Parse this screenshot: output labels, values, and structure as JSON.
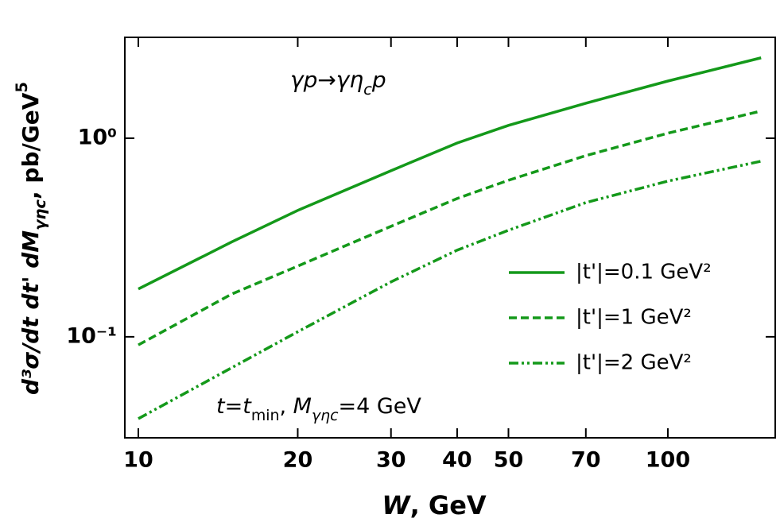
{
  "chart_data": {
    "type": "line",
    "xlog": true,
    "ylog": true,
    "xlim": [
      9.43,
      159.5
    ],
    "ylim": [
      0.031,
      3.22
    ],
    "xticks": [
      10,
      20,
      30,
      40,
      50,
      70,
      100
    ],
    "yticks": [
      {
        "value": 1,
        "label": "10⁰"
      },
      {
        "value": 0.1,
        "label": "10⁻¹"
      }
    ],
    "x": [
      10,
      15,
      20,
      30,
      40,
      50,
      70,
      100,
      150
    ],
    "series": [
      {
        "name": "|t'|=0.1 GeV²",
        "color": "#14991a",
        "dash": "solid",
        "values": [
          0.174,
          0.3,
          0.433,
          0.686,
          0.946,
          1.16,
          1.5,
          1.94,
          2.54
        ]
      },
      {
        "name": "|t'|=1 GeV²",
        "color": "#14991a",
        "dash": "dashed",
        "values": [
          0.091,
          0.164,
          0.227,
          0.36,
          0.497,
          0.614,
          0.817,
          1.06,
          1.37
        ]
      },
      {
        "name": "|t'|=2 GeV²",
        "color": "#14991a",
        "dash": "dashdot",
        "values": [
          0.0387,
          0.0698,
          0.106,
          0.189,
          0.273,
          0.344,
          0.474,
          0.608,
          0.766
        ]
      }
    ],
    "legend": "center right",
    "x_label": [
      {
        "text": "W",
        "italic": true
      },
      {
        "text": ", GeV"
      }
    ],
    "y_label": [
      {
        "text": "d³σ/dt dt' dM",
        "italic": true
      },
      {
        "text": "γη",
        "italic": true,
        "sub": true
      },
      {
        "text": "c",
        "italic": true,
        "sub": true
      },
      {
        "text": ", pb/GeV"
      },
      {
        "text": "5",
        "sup": true
      }
    ],
    "annotations": [
      [
        {
          "text": "γp→γη",
          "italic": true
        },
        {
          "text": "c",
          "italic": true,
          "sub": true
        },
        {
          "text": "p",
          "italic": true
        }
      ],
      [
        {
          "text": "t",
          "italic": true
        },
        {
          "text": "=t",
          "italic": true
        },
        {
          "text": "min",
          "sub": true
        },
        {
          "text": ", "
        },
        {
          "text": "M",
          "italic": true
        },
        {
          "text": "γη",
          "italic": true,
          "sub": true
        },
        {
          "text": "c",
          "italic": true,
          "sub": true
        },
        {
          "text": "=4 GeV"
        }
      ]
    ]
  }
}
